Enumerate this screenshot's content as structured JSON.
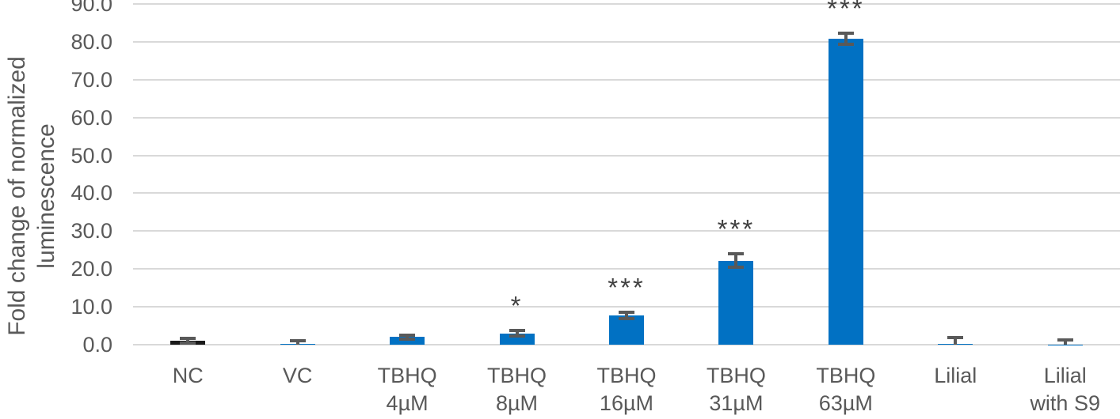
{
  "chart_data": {
    "type": "bar",
    "title": "",
    "xlabel": "",
    "ylabel": "Fold change of normalized luminescence",
    "ylabel_lines": [
      "Fold change of normalized",
      "luminescence"
    ],
    "ylim": [
      0,
      90
    ],
    "ytick_step": 10,
    "yticks": [
      {
        "value": 0,
        "label": "0.0"
      },
      {
        "value": 10,
        "label": "10.0"
      },
      {
        "value": 20,
        "label": "20.0"
      },
      {
        "value": 30,
        "label": "30.0"
      },
      {
        "value": 40,
        "label": "40.0"
      },
      {
        "value": 50,
        "label": "50.0"
      },
      {
        "value": 60,
        "label": "60.0"
      },
      {
        "value": 70,
        "label": "70.0"
      },
      {
        "value": 80,
        "label": "80.0"
      },
      {
        "value": 90,
        "label": "90.0"
      }
    ],
    "grid": "horizontal",
    "legend": "none",
    "categories": [
      "NC",
      "VC",
      "TBHQ 4µM",
      "TBHQ 8µM",
      "TBHQ 16µM",
      "TBHQ 31µM",
      "TBHQ 63µM",
      "Lilial",
      "Lilial with S9"
    ],
    "bars": [
      {
        "label_lines": [
          "NC"
        ],
        "value": 1.1,
        "error": 0.6,
        "significance": "",
        "color": "#1a1a1a"
      },
      {
        "label_lines": [
          "VC"
        ],
        "value": 0.3,
        "error": 0.7,
        "significance": "",
        "color": "#0171c3"
      },
      {
        "label_lines": [
          "TBHQ",
          "4µM"
        ],
        "value": 2.0,
        "error": 0.6,
        "significance": "",
        "color": "#0171c3"
      },
      {
        "label_lines": [
          "TBHQ",
          "8µM"
        ],
        "value": 3.0,
        "error": 0.7,
        "significance": "*",
        "color": "#0171c3"
      },
      {
        "label_lines": [
          "TBHQ",
          "16µM"
        ],
        "value": 7.7,
        "error": 0.8,
        "significance": "***",
        "color": "#0171c3"
      },
      {
        "label_lines": [
          "TBHQ",
          "31µM"
        ],
        "value": 22.2,
        "error": 1.8,
        "significance": "***",
        "color": "#0171c3"
      },
      {
        "label_lines": [
          "TBHQ",
          "63µM"
        ],
        "value": 80.8,
        "error": 1.5,
        "significance": "***",
        "color": "#0171c3"
      },
      {
        "label_lines": [
          "Lilial"
        ],
        "value": 0.2,
        "error": 1.7,
        "significance": "",
        "color": "#0171c3"
      },
      {
        "label_lines": [
          "Lilial",
          "with S9"
        ],
        "value": 0.1,
        "error": 1.1,
        "significance": "",
        "color": "#0171c3"
      }
    ]
  },
  "colors": {
    "bar_blue": "#0171c3",
    "bar_black": "#1a1a1a",
    "gridline": "#d9d9d9",
    "axis_text": "#595959",
    "error_bar": "#595959",
    "significance": "#404040",
    "background": "#ffffff"
  }
}
